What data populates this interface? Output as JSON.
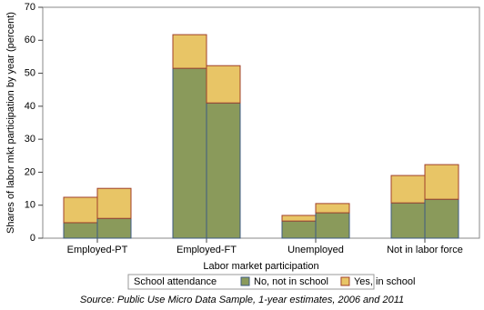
{
  "chart_data": {
    "type": "grouped-stacked-bar",
    "ylabel": "Shares of labor mkt participation by year (percent)",
    "xlabel": "Labor market participation",
    "categories": [
      "Employed-PT",
      "Employed-FT",
      "Unemployed",
      "Not in labor force"
    ],
    "series": [
      {
        "name": "No, not in school",
        "color": "#8a9a5b",
        "stroke": "#3d5a80",
        "values": [
          [
            4.7,
            6.0
          ],
          [
            51.5,
            41.0
          ],
          [
            5.2,
            7.7
          ],
          [
            10.7,
            11.8
          ]
        ]
      },
      {
        "name": "Yes, in school",
        "color": "#e8c566",
        "stroke": "#a0402a",
        "values": [
          [
            7.7,
            9.1
          ],
          [
            10.2,
            11.3
          ],
          [
            1.7,
            2.8
          ],
          [
            8.3,
            10.5
          ]
        ]
      }
    ],
    "legend_title": "School attendance",
    "source": "Source: Public Use Micro Data Sample, 1-year estimates, 2006 and 2011",
    "ylim": [
      0,
      70
    ],
    "yticks": [
      0,
      10,
      20,
      30,
      40,
      50,
      60,
      70
    ],
    "grid": false
  }
}
